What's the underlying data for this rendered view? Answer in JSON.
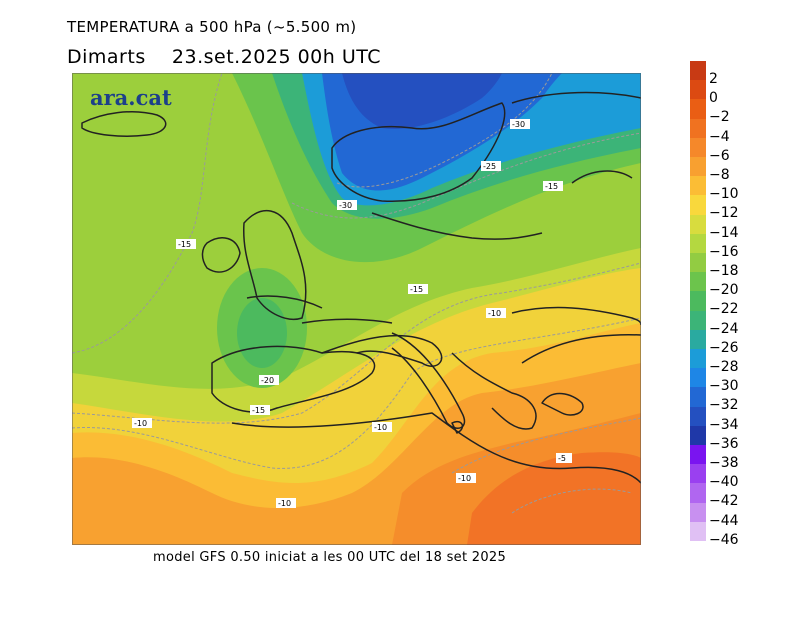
{
  "header": {
    "title": "TEMPERATURA a 500 hPa (~5.500 m)",
    "day": "Dimarts",
    "date": "23.set.2025 00h UTC"
  },
  "map": {
    "logo": "ara.cat",
    "contour_labels": [
      "-30",
      "-25",
      "-30",
      "-15",
      "-15",
      "-15",
      "-10",
      "-20",
      "-15",
      "-10",
      "-10",
      "-5",
      "-10",
      "-10"
    ]
  },
  "footer": "model GFS 0.50 iniciat a les 00 UTC del 18 set 2025",
  "legend": {
    "items": [
      {
        "label": "2",
        "color": "#c83a14"
      },
      {
        "label": "0",
        "color": "#dc4a12"
      },
      {
        "label": "−2",
        "color": "#ea5e14"
      },
      {
        "label": "−4",
        "color": "#f07220"
      },
      {
        "label": "−6",
        "color": "#f5882a"
      },
      {
        "label": "−8",
        "color": "#f8a030"
      },
      {
        "label": "−10",
        "color": "#fbbd35"
      },
      {
        "label": "−12",
        "color": "#f9d83c"
      },
      {
        "label": "−14",
        "color": "#d8dc3e"
      },
      {
        "label": "−16",
        "color": "#b4d840"
      },
      {
        "label": "−18",
        "color": "#92cc42"
      },
      {
        "label": "−20",
        "color": "#6cc44c"
      },
      {
        "label": "−22",
        "color": "#4cba5e"
      },
      {
        "label": "−24",
        "color": "#3cb478"
      },
      {
        "label": "−26",
        "color": "#2aaaa0"
      },
      {
        "label": "−28",
        "color": "#1c9cd8"
      },
      {
        "label": "−30",
        "color": "#1e86e6"
      },
      {
        "label": "−32",
        "color": "#2268d4"
      },
      {
        "label": "−34",
        "color": "#2450c0"
      },
      {
        "label": "−36",
        "color": "#1f38a8"
      },
      {
        "label": "−38",
        "color": "#7a14f0"
      },
      {
        "label": "−40",
        "color": "#9a40f0"
      },
      {
        "label": "−42",
        "color": "#b066f0"
      },
      {
        "label": "−44",
        "color": "#c890f0"
      },
      {
        "label": "−46",
        "color": "#e0c0f4"
      }
    ]
  }
}
